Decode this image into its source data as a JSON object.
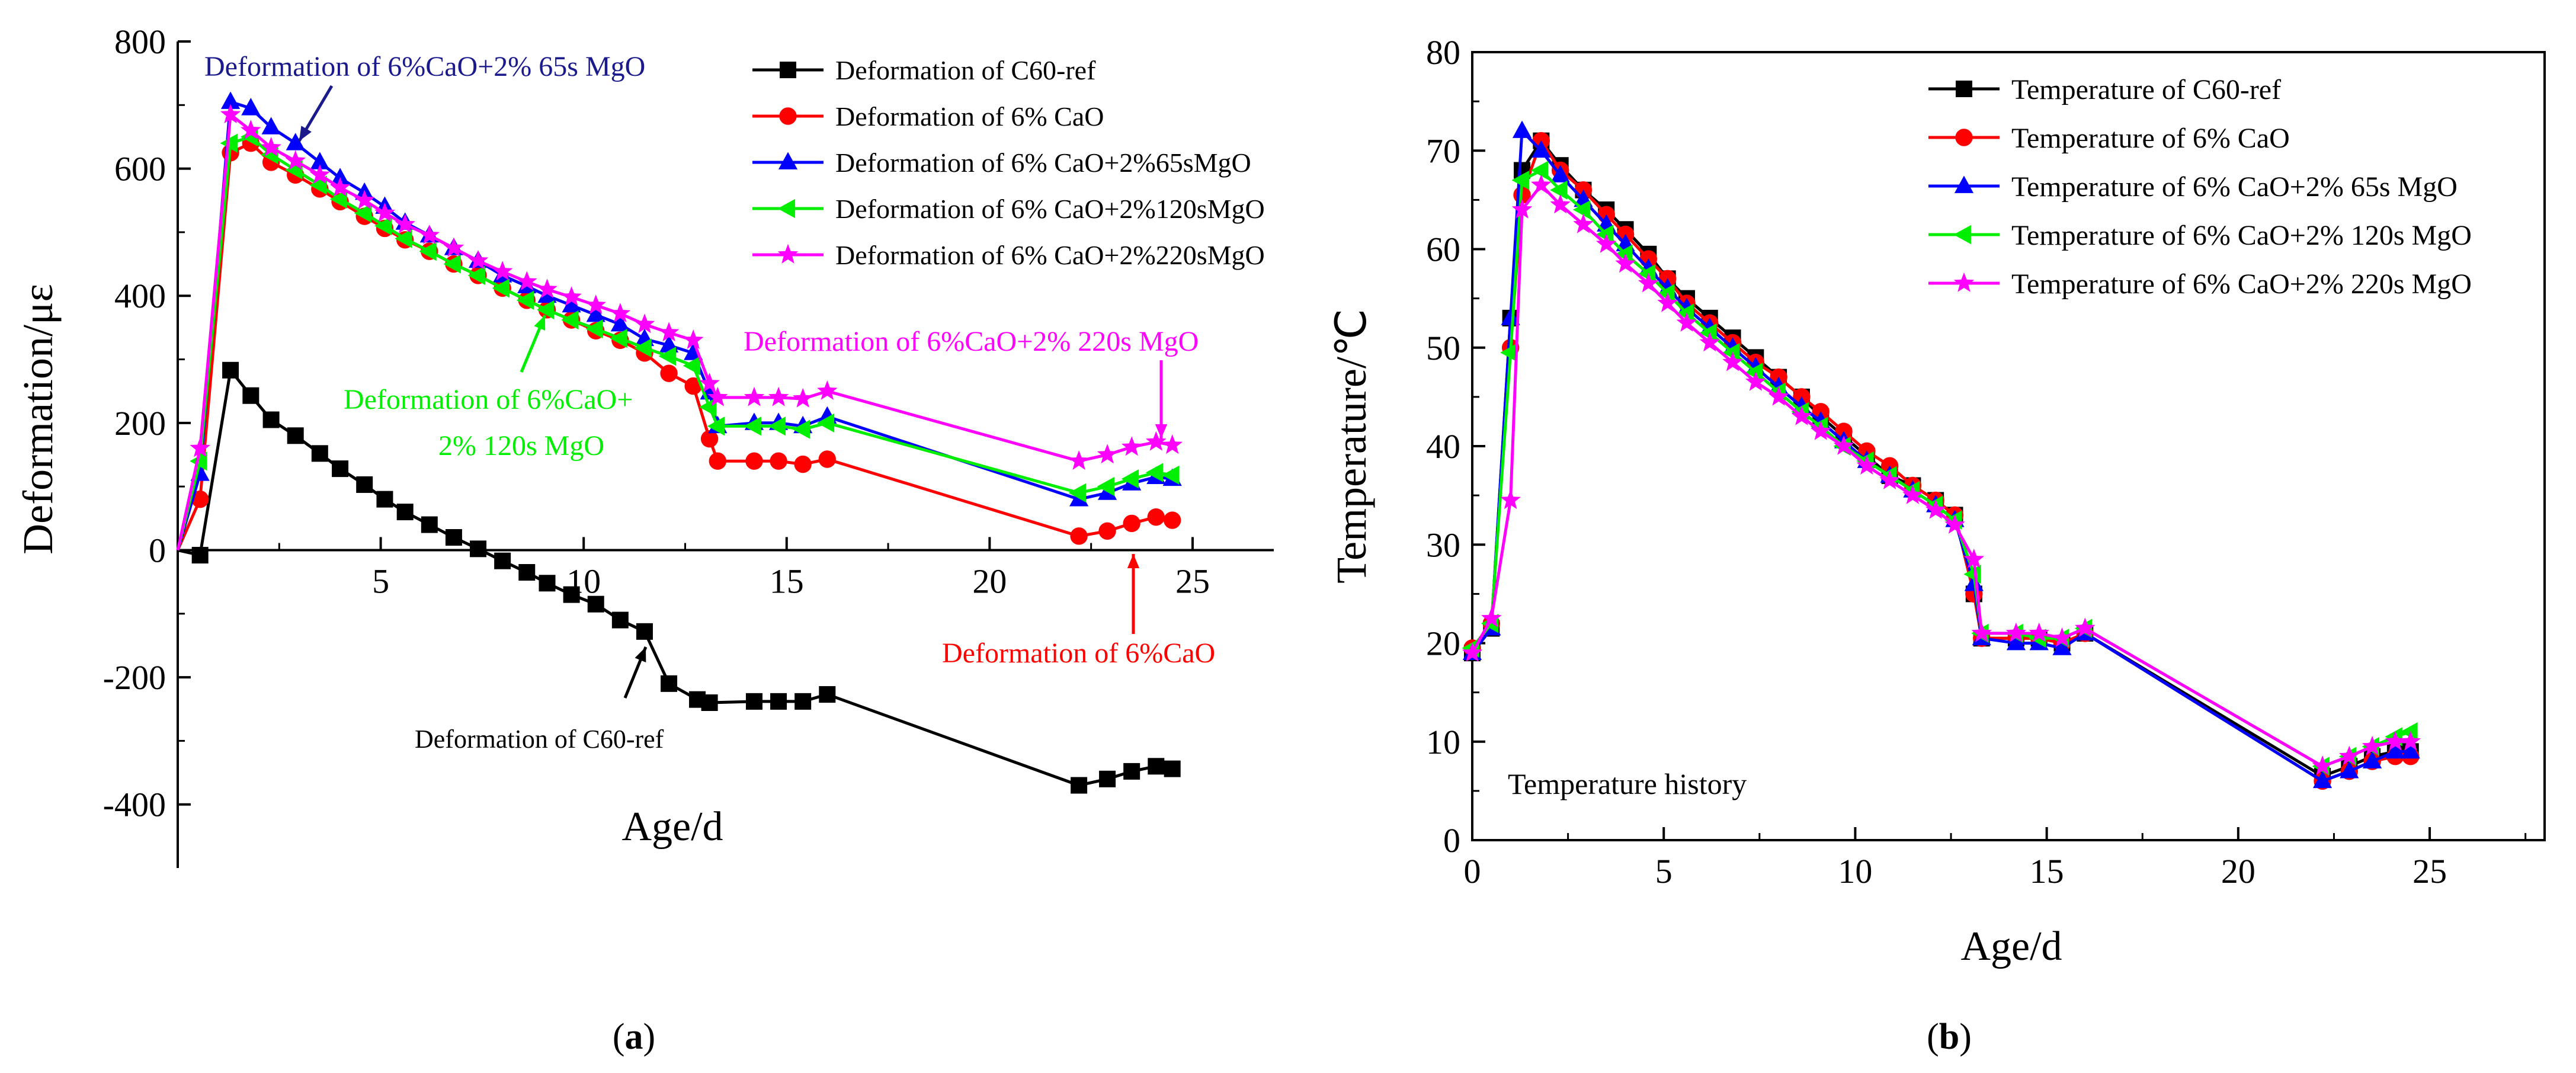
{
  "chart_data": [
    {
      "panel_label": "a",
      "type": "line",
      "xlabel": "Age/d",
      "ylabel": "Deformation/με",
      "xlim": [
        0,
        27
      ],
      "ylim": [
        -500,
        800
      ],
      "x_ticks": [
        5,
        10,
        15,
        20,
        25
      ],
      "y_ticks": [
        -400,
        -200,
        0,
        200,
        400,
        600,
        800
      ],
      "legend_position": "top-right",
      "series": [
        {
          "name": "Deformation of C60-ref",
          "color": "#000000",
          "marker": "square",
          "x": [
            0,
            0.55,
            1.3,
            1.8,
            2.3,
            2.9,
            3.5,
            4.0,
            4.6,
            5.1,
            5.6,
            6.2,
            6.8,
            7.4,
            8.0,
            8.6,
            9.1,
            9.7,
            10.3,
            10.9,
            11.5,
            12.1,
            12.8,
            13.1,
            14.2,
            14.8,
            15.4,
            16.0,
            22.2,
            22.9,
            23.5,
            24.1,
            24.5
          ],
          "y": [
            0,
            -8,
            283,
            243,
            205,
            180,
            152,
            128,
            103,
            80,
            60,
            40,
            20,
            2,
            -17,
            -35,
            -52,
            -70,
            -85,
            -110,
            -128,
            -210,
            -235,
            -240,
            -238,
            -238,
            -238,
            -227,
            -370,
            -360,
            -348,
            -340,
            -344
          ]
        },
        {
          "name": "Deformation of 6% CaO",
          "color": "#ff0000",
          "marker": "circle",
          "x": [
            0,
            0.55,
            1.3,
            1.8,
            2.3,
            2.9,
            3.5,
            4.0,
            4.6,
            5.1,
            5.6,
            6.2,
            6.8,
            7.4,
            8.0,
            8.6,
            9.1,
            9.7,
            10.3,
            10.9,
            11.5,
            12.1,
            12.7,
            13.1,
            13.3,
            14.2,
            14.8,
            15.4,
            16.0,
            22.2,
            22.9,
            23.5,
            24.1,
            24.5
          ],
          "y": [
            0,
            80,
            625,
            640,
            610,
            590,
            568,
            548,
            525,
            506,
            488,
            470,
            450,
            432,
            412,
            393,
            378,
            362,
            345,
            330,
            310,
            278,
            258,
            175,
            140,
            140,
            140,
            135,
            143,
            22,
            30,
            42,
            52,
            47
          ]
        },
        {
          "name": "Deformation of 6% CaO+2%65sMgO",
          "color": "#0000ff",
          "marker": "triangle",
          "x": [
            0,
            0.55,
            1.3,
            1.8,
            2.3,
            2.9,
            3.5,
            4.0,
            4.6,
            5.1,
            5.6,
            6.2,
            6.8,
            7.4,
            8.0,
            8.6,
            9.1,
            9.7,
            10.3,
            10.9,
            11.5,
            12.1,
            12.7,
            13.1,
            13.3,
            14.2,
            14.8,
            15.4,
            16.0,
            22.2,
            22.9,
            23.5,
            24.1,
            24.5
          ],
          "y": [
            0,
            120,
            705,
            695,
            665,
            640,
            610,
            585,
            562,
            540,
            515,
            495,
            475,
            455,
            432,
            415,
            400,
            385,
            370,
            355,
            332,
            322,
            310,
            248,
            195,
            200,
            200,
            195,
            210,
            80,
            90,
            105,
            115,
            112
          ]
        },
        {
          "name": "Deformation of 6% CaO+2%120sMgO",
          "color": "#00ee00",
          "marker": "triangle-left",
          "x": [
            0,
            0.55,
            1.3,
            1.8,
            2.3,
            2.9,
            3.5,
            4.0,
            4.6,
            5.1,
            5.6,
            6.2,
            6.8,
            7.4,
            8.0,
            8.6,
            9.1,
            9.7,
            10.3,
            10.9,
            11.5,
            12.1,
            12.7,
            13.1,
            13.3,
            14.2,
            14.8,
            15.4,
            16.0,
            22.2,
            22.9,
            23.5,
            24.1,
            24.5
          ],
          "y": [
            0,
            140,
            640,
            650,
            622,
            598,
            574,
            552,
            530,
            510,
            490,
            470,
            450,
            432,
            412,
            393,
            378,
            362,
            348,
            333,
            318,
            305,
            290,
            225,
            195,
            195,
            195,
            190,
            200,
            90,
            100,
            112,
            122,
            118
          ]
        },
        {
          "name": "Deformation of 6% CaO+2%220sMgO",
          "color": "#ff00ff",
          "marker": "star",
          "x": [
            0,
            0.55,
            1.3,
            1.8,
            2.3,
            2.9,
            3.5,
            4.0,
            4.6,
            5.1,
            5.6,
            6.2,
            6.8,
            7.4,
            8.0,
            8.6,
            9.1,
            9.7,
            10.3,
            10.9,
            11.5,
            12.1,
            12.7,
            13.1,
            13.3,
            14.2,
            14.8,
            15.4,
            16.0,
            22.2,
            22.9,
            23.5,
            24.1,
            24.5
          ],
          "y": [
            0,
            160,
            685,
            660,
            633,
            612,
            590,
            570,
            550,
            530,
            512,
            495,
            475,
            455,
            438,
            422,
            410,
            398,
            385,
            372,
            355,
            342,
            330,
            262,
            240,
            240,
            240,
            238,
            250,
            140,
            150,
            162,
            170,
            165
          ]
        }
      ],
      "annotations": [
        {
          "text": "Deformation of 6%CaO+2% 65s MgO",
          "color": "#1a1a8c"
        },
        {
          "text": "Deformation of 6%CaO+",
          "color": "#00ee00"
        },
        {
          "text": "2% 120s MgO",
          "color": "#00ee00"
        },
        {
          "text": "Deformation of 6%CaO+2% 220s MgO",
          "color": "#ff00ff"
        },
        {
          "text": "Deformation of 6%CaO",
          "color": "#ff0000"
        },
        {
          "text": "Deformation of C60-ref",
          "color": "#000000"
        }
      ]
    },
    {
      "panel_label": "b",
      "type": "line",
      "xlabel": "Age/d",
      "ylabel": "Temperature/℃",
      "xlim": [
        0,
        28
      ],
      "ylim": [
        0,
        80
      ],
      "x_ticks": [
        0,
        5,
        10,
        15,
        20,
        25
      ],
      "y_ticks": [
        0,
        10,
        20,
        30,
        40,
        50,
        60,
        70,
        80
      ],
      "legend_position": "top-right",
      "inner_label": "Temperature history",
      "series": [
        {
          "name": "Temperature of C60-ref",
          "color": "#000000",
          "marker": "square",
          "x": [
            0,
            0.5,
            1.0,
            1.3,
            1.8,
            2.3,
            2.9,
            3.5,
            4.0,
            4.6,
            5.1,
            5.6,
            6.2,
            6.8,
            7.4,
            8.0,
            8.6,
            9.1,
            9.7,
            10.3,
            10.9,
            11.5,
            12.1,
            12.6,
            13.1,
            13.3,
            14.2,
            14.8,
            15.4,
            16.0,
            22.2,
            22.9,
            23.5,
            24.1,
            24.5
          ],
          "y": [
            19,
            21.5,
            53,
            68,
            71,
            68.5,
            66,
            64,
            62,
            59.5,
            57,
            55,
            53,
            51,
            49,
            47,
            45,
            43,
            41,
            39,
            37,
            36,
            34.5,
            33,
            25,
            20.5,
            20.5,
            20.5,
            20,
            21,
            6.5,
            7.5,
            8.5,
            9,
            9
          ]
        },
        {
          "name": "Temperature of 6% CaO",
          "color": "#ff0000",
          "marker": "circle",
          "x": [
            0,
            0.5,
            1.0,
            1.3,
            1.8,
            2.3,
            2.9,
            3.5,
            4.0,
            4.6,
            5.1,
            5.6,
            6.2,
            6.8,
            7.4,
            8.0,
            8.6,
            9.1,
            9.7,
            10.3,
            10.9,
            11.5,
            12.1,
            12.6,
            13.1,
            13.3,
            14.2,
            14.8,
            15.4,
            16.0,
            22.2,
            22.9,
            23.5,
            24.1,
            24.5
          ],
          "y": [
            19.5,
            22,
            50,
            65.5,
            71,
            68,
            66,
            63.5,
            61.5,
            59,
            57,
            54.5,
            52.5,
            50.5,
            48.5,
            47,
            45,
            43.5,
            41.5,
            39.5,
            38,
            36,
            34.5,
            33,
            25,
            20.5,
            20.5,
            20.5,
            20,
            21,
            6,
            7,
            8,
            8.5,
            8.5
          ]
        },
        {
          "name": "Temperature of 6% CaO+2% 65s MgO",
          "color": "#0000ff",
          "marker": "triangle",
          "x": [
            0,
            0.5,
            1.0,
            1.3,
            1.8,
            2.3,
            2.9,
            3.5,
            4.0,
            4.6,
            5.1,
            5.6,
            6.2,
            6.8,
            7.4,
            8.0,
            8.6,
            9.1,
            9.7,
            10.3,
            10.9,
            11.5,
            12.1,
            12.6,
            13.1,
            13.3,
            14.2,
            14.8,
            15.4,
            16.0,
            22.2,
            22.9,
            23.5,
            24.1,
            24.5
          ],
          "y": [
            19,
            21.5,
            53,
            72,
            70,
            67.5,
            65,
            62.5,
            60.5,
            58,
            56,
            54,
            52,
            50,
            48,
            46,
            44,
            42.5,
            40.5,
            38.5,
            37,
            35.5,
            34,
            32.5,
            26,
            20.5,
            20,
            20,
            19.5,
            21,
            6,
            7,
            8,
            9,
            9
          ]
        },
        {
          "name": "Temperature of 6% CaO+2% 120s MgO",
          "color": "#00ee00",
          "marker": "triangle-left",
          "x": [
            0,
            0.5,
            1.0,
            1.3,
            1.8,
            2.3,
            2.9,
            3.5,
            4.0,
            4.6,
            5.1,
            5.6,
            6.2,
            6.8,
            7.4,
            8.0,
            8.6,
            9.1,
            9.7,
            10.3,
            10.9,
            11.5,
            12.1,
            12.6,
            13.1,
            13.3,
            14.2,
            14.8,
            15.4,
            16.0,
            22.2,
            22.9,
            23.5,
            24.1,
            24.5
          ],
          "y": [
            19.5,
            22,
            49.5,
            67,
            68,
            66,
            64,
            61.5,
            59.5,
            57.5,
            55.5,
            53.5,
            51.5,
            49.5,
            47.5,
            45.5,
            43.5,
            42,
            40,
            38.5,
            37,
            35.5,
            34,
            32.5,
            27,
            21,
            21,
            20.5,
            20.5,
            21.5,
            7.5,
            8.5,
            9.5,
            10.5,
            11
          ]
        },
        {
          "name": "Temperature of 6% CaO+2% 220s MgO",
          "color": "#ff00ff",
          "marker": "star",
          "x": [
            0,
            0.5,
            1.0,
            1.3,
            1.8,
            2.3,
            2.9,
            3.5,
            4.0,
            4.6,
            5.1,
            5.6,
            6.2,
            6.8,
            7.4,
            8.0,
            8.6,
            9.1,
            9.7,
            10.3,
            10.9,
            11.5,
            12.1,
            12.6,
            13.1,
            13.3,
            14.2,
            14.8,
            15.4,
            16.0,
            22.2,
            22.9,
            23.5,
            24.1,
            24.5
          ],
          "y": [
            19,
            22.5,
            34.5,
            64,
            66.5,
            64.5,
            62.5,
            60.5,
            58.5,
            56.5,
            54.5,
            52.5,
            50.5,
            48.5,
            46.5,
            45,
            43,
            41.5,
            40,
            38,
            36.5,
            35,
            33.5,
            32,
            28.5,
            21,
            21,
            21,
            20.5,
            21.5,
            7.5,
            8.5,
            9.5,
            10,
            10
          ]
        }
      ]
    }
  ]
}
